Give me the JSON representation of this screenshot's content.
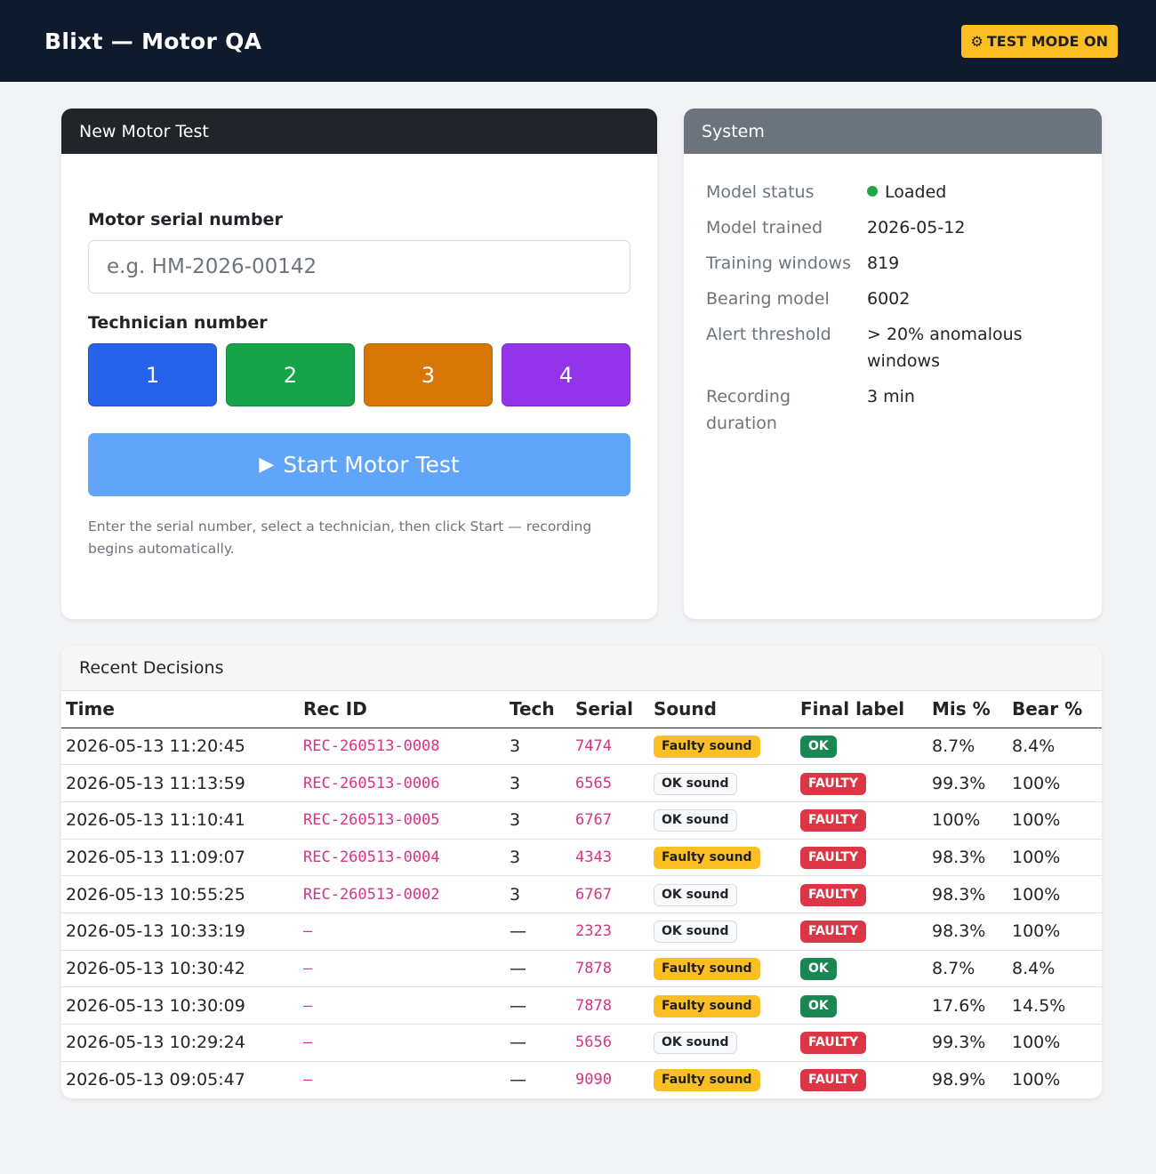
{
  "header": {
    "title": "Blixt — Motor QA",
    "test_mode_icon": "⚙",
    "test_mode_label": "TEST MODE ON"
  },
  "new_test": {
    "title": "New Motor Test",
    "serial_label": "Motor serial number",
    "serial_value": "",
    "serial_placeholder": "e.g. HM-2026-00142",
    "tech_label": "Technician number",
    "techs": [
      {
        "label": "1",
        "color": "#2563eb"
      },
      {
        "label": "2",
        "color": "#16a34a"
      },
      {
        "label": "3",
        "color": "#d97706"
      },
      {
        "label": "4",
        "color": "#9333ea"
      }
    ],
    "start_icon": "▶",
    "start_label": "Start Motor Test",
    "help": "Enter the serial number, select a technician, then click Start — recording begins automatically."
  },
  "system": {
    "title": "System",
    "rows": [
      {
        "key": "Model status",
        "value": "Loaded"
      },
      {
        "key": "Model trained",
        "value": "2026-05-12"
      },
      {
        "key": "Training windows",
        "value": "819"
      },
      {
        "key": "Bearing model",
        "value": "6002"
      },
      {
        "key": "Alert threshold",
        "value": "> 20% anomalous windows"
      },
      {
        "key": "Recording duration",
        "value": "3 min"
      }
    ]
  },
  "recent": {
    "title": "Recent Decisions",
    "columns": [
      "Time",
      "Rec ID",
      "Tech",
      "Serial",
      "Sound",
      "Final label",
      "Mis %",
      "Bear %"
    ],
    "rows": [
      {
        "time": "2026-05-13 11:20:45",
        "rec_id": "REC-260513-0008",
        "tech": "3",
        "serial": "7474",
        "sound": "Faulty sound",
        "label": "OK",
        "mis": "8.7%",
        "bear": "8.4%"
      },
      {
        "time": "2026-05-13 11:13:59",
        "rec_id": "REC-260513-0006",
        "tech": "3",
        "serial": "6565",
        "sound": "OK sound",
        "label": "FAULTY",
        "mis": "99.3%",
        "bear": "100%"
      },
      {
        "time": "2026-05-13 11:10:41",
        "rec_id": "REC-260513-0005",
        "tech": "3",
        "serial": "6767",
        "sound": "OK sound",
        "label": "FAULTY",
        "mis": "100%",
        "bear": "100%"
      },
      {
        "time": "2026-05-13 11:09:07",
        "rec_id": "REC-260513-0004",
        "tech": "3",
        "serial": "4343",
        "sound": "Faulty sound",
        "label": "FAULTY",
        "mis": "98.3%",
        "bear": "100%"
      },
      {
        "time": "2026-05-13 10:55:25",
        "rec_id": "REC-260513-0002",
        "tech": "3",
        "serial": "6767",
        "sound": "OK sound",
        "label": "FAULTY",
        "mis": "98.3%",
        "bear": "100%"
      },
      {
        "time": "2026-05-13 10:33:19",
        "rec_id": "–",
        "tech": "—",
        "serial": "2323",
        "sound": "OK sound",
        "label": "FAULTY",
        "mis": "98.3%",
        "bear": "100%"
      },
      {
        "time": "2026-05-13 10:30:42",
        "rec_id": "–",
        "tech": "—",
        "serial": "7878",
        "sound": "Faulty sound",
        "label": "OK",
        "mis": "8.7%",
        "bear": "8.4%"
      },
      {
        "time": "2026-05-13 10:30:09",
        "rec_id": "–",
        "tech": "—",
        "serial": "7878",
        "sound": "Faulty sound",
        "label": "OK",
        "mis": "17.6%",
        "bear": "14.5%"
      },
      {
        "time": "2026-05-13 10:29:24",
        "rec_id": "–",
        "tech": "—",
        "serial": "5656",
        "sound": "OK sound",
        "label": "FAULTY",
        "mis": "99.3%",
        "bear": "100%"
      },
      {
        "time": "2026-05-13 09:05:47",
        "rec_id": "–",
        "tech": "—",
        "serial": "9090",
        "sound": "Faulty sound",
        "label": "FAULTY",
        "mis": "98.9%",
        "bear": "100%"
      }
    ]
  }
}
